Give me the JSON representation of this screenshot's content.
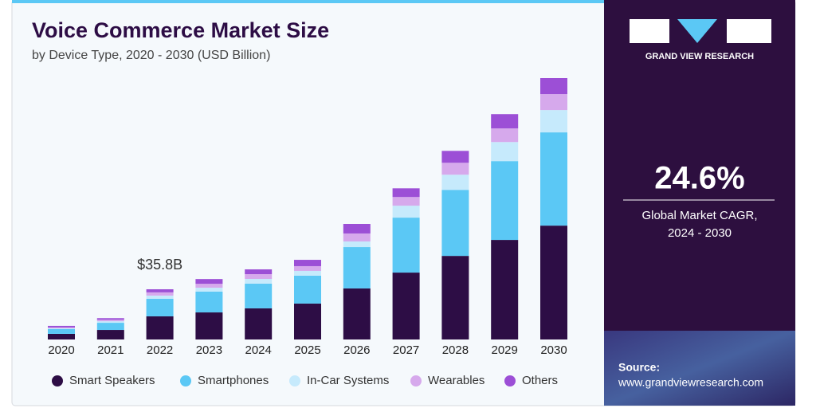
{
  "chart_data": {
    "type": "stacked-bar",
    "title": "Voice Commerce Market Size",
    "subtitle": "by Device Type, 2020 - 2030 (USD Billion)",
    "annotation": "$35.8B",
    "annotation_category": "2022",
    "categories": [
      "2020",
      "2021",
      "2022",
      "2023",
      "2024",
      "2025",
      "2026",
      "2027",
      "2028",
      "2029",
      "2030"
    ],
    "series": [
      {
        "name": "Smart Speakers",
        "color": "#2d0d45",
        "values": [
          4.0,
          6.8,
          16.5,
          19.3,
          22.2,
          25.6,
          36.4,
          47.7,
          59.6,
          71.0,
          81.2
        ]
      },
      {
        "name": "Smartphones",
        "color": "#5bc8f5",
        "values": [
          3.4,
          5.1,
          12.5,
          14.8,
          17.6,
          19.9,
          29.5,
          39.2,
          47.1,
          56.2,
          66.5
        ]
      },
      {
        "name": "In-Car Systems",
        "color": "#c6eafc",
        "values": [
          0.6,
          1.1,
          2.3,
          2.8,
          3.4,
          3.4,
          4.0,
          8.5,
          10.8,
          13.6,
          15.9
        ]
      },
      {
        "name": "Wearables",
        "color": "#d6a9ec",
        "values": [
          0.6,
          1.1,
          2.3,
          2.8,
          3.4,
          3.4,
          5.7,
          6.2,
          8.5,
          9.7,
          11.4
        ]
      },
      {
        "name": "Others",
        "color": "#9c4fd6",
        "values": [
          1.1,
          1.1,
          2.2,
          3.4,
          3.4,
          4.5,
          6.8,
          6.2,
          8.5,
          10.2,
          11.4
        ]
      }
    ]
  },
  "side_panel": {
    "brand": "GRAND VIEW RESEARCH",
    "cagr": "24.6%",
    "cagr_label_1": "Global Market CAGR,",
    "cagr_label_2": "2024 - 2030",
    "source_label": "Source:",
    "source_url": "www.grandviewresearch.com"
  }
}
